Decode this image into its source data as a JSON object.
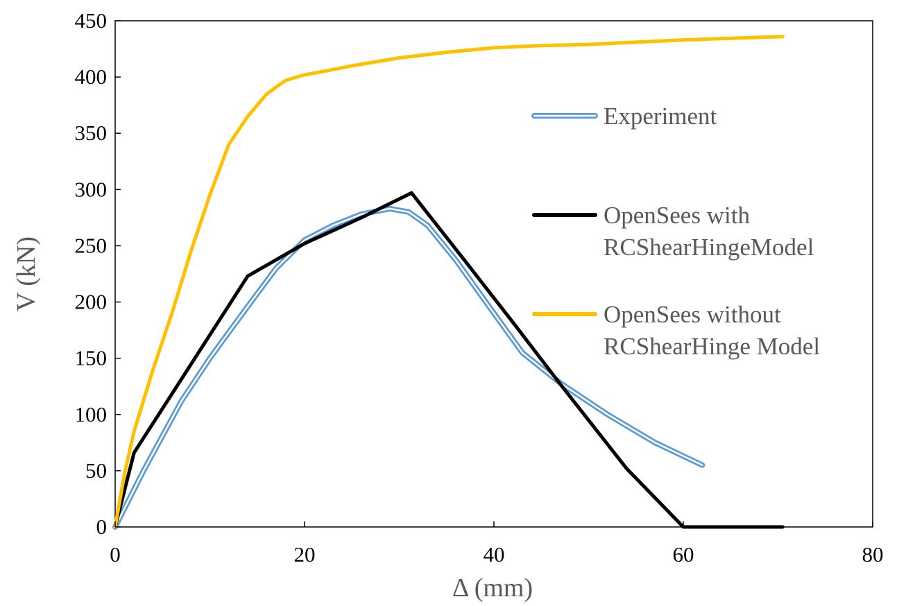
{
  "chart_data": {
    "type": "line",
    "title": "",
    "xlabel": "Δ (mm)",
    "ylabel": "V (kN)",
    "xlim": [
      0,
      80
    ],
    "ylim": [
      0,
      450
    ],
    "xticks": [
      0,
      20,
      40,
      60,
      80
    ],
    "yticks": [
      0,
      50,
      100,
      150,
      200,
      250,
      300,
      350,
      400,
      450
    ],
    "grid": false,
    "legend_position": "right",
    "series": [
      {
        "name": "Experiment",
        "color": "#5B9BD5",
        "style": "double-line",
        "x": [
          0,
          3,
          7,
          10,
          14,
          17,
          20,
          23,
          26,
          29,
          31,
          33,
          36,
          40,
          43,
          47,
          52,
          57,
          62
        ],
        "y": [
          0,
          50,
          112,
          150,
          196,
          230,
          255,
          268,
          278,
          283,
          280,
          268,
          237,
          190,
          155,
          128,
          100,
          75,
          55
        ]
      },
      {
        "name": "OpenSees with\nRCShearHingeModel",
        "color": "#000000",
        "x": [
          0,
          2,
          14,
          20,
          26,
          31.3,
          37,
          42,
          47,
          54,
          60,
          70.5
        ],
        "y": [
          0,
          66,
          223,
          252,
          275,
          297,
          236,
          182,
          127,
          52,
          0,
          0
        ]
      },
      {
        "name": "OpenSees without\nRCShearHinge Model",
        "color": "#FFC000",
        "x": [
          0,
          1,
          2,
          4,
          6,
          8,
          10,
          12,
          14,
          16,
          18,
          20,
          22,
          25,
          30,
          35,
          40,
          45,
          50,
          60,
          70.5
        ],
        "y": [
          0,
          48,
          85,
          140,
          190,
          245,
          295,
          340,
          365,
          385,
          397,
          402,
          405,
          410,
          417,
          422,
          426,
          428,
          429,
          433,
          436
        ]
      }
    ]
  }
}
